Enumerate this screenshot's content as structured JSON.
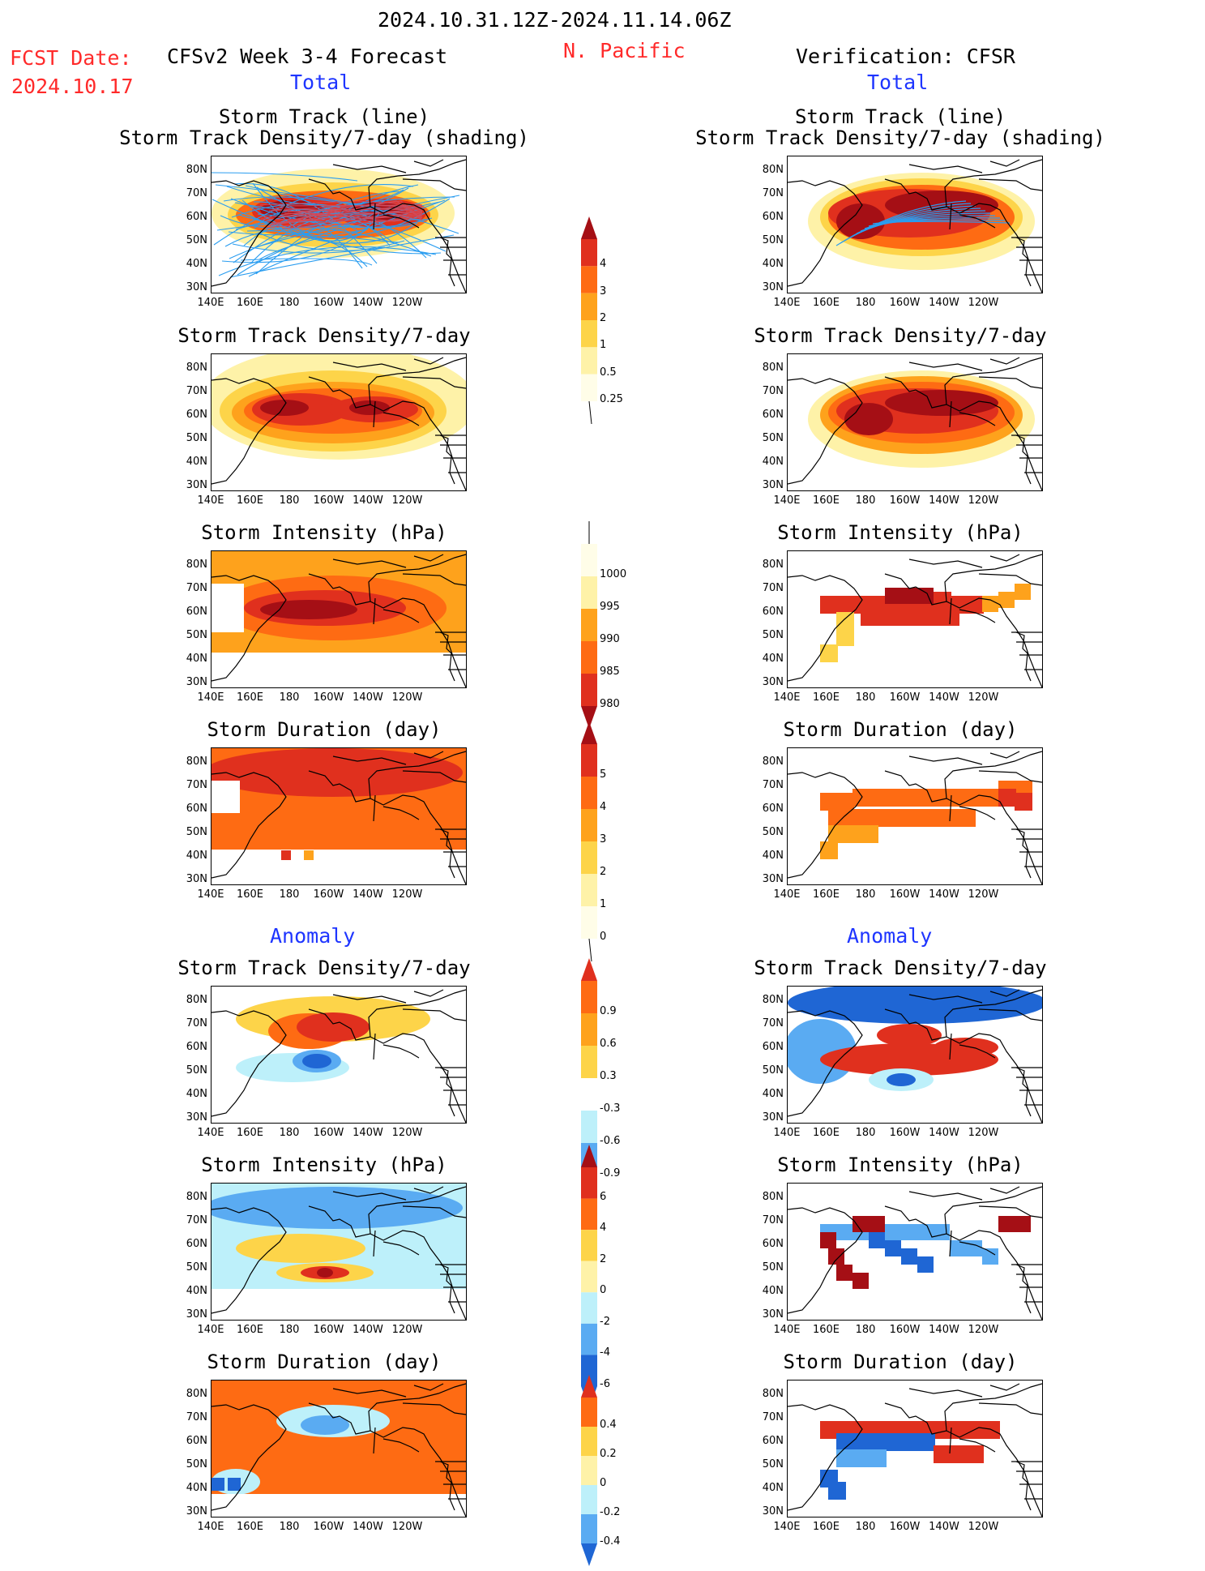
{
  "header": {
    "period": "2024.10.31.12Z-2024.11.14.06Z",
    "fcst_label": "FCST Date:",
    "fcst_date": "2024.10.17",
    "model": "CFSv2 Week 3-4 Forecast",
    "region": "N. Pacific",
    "verification": "Verification: CFSR",
    "total_left": "Total",
    "total_right": "Total",
    "anomaly_left": "Anomaly",
    "anomaly_right": "Anomaly"
  },
  "panels": {
    "track_line": "Storm Track (line)",
    "track_shading": "Storm Track Density/7-day (shading)",
    "density": "Storm Track Density/7-day",
    "intensity": "Storm Intensity (hPa)",
    "duration": "Storm Duration (day)"
  },
  "axes": {
    "y": [
      "80N",
      "70N",
      "60N",
      "50N",
      "40N",
      "30N"
    ],
    "x": [
      "140E",
      "160E",
      "180",
      "160W",
      "140W",
      "120W"
    ]
  },
  "colorbars": {
    "density": [
      "4",
      "3",
      "2",
      "1",
      "0.5",
      "0.25"
    ],
    "intensity": [
      "1000",
      "995",
      "990",
      "985",
      "980"
    ],
    "duration": [
      "5",
      "4",
      "3",
      "2",
      "1",
      "0"
    ],
    "density_anom": [
      "0.9",
      "0.6",
      "0.3",
      "-0.3",
      "-0.6",
      "-0.9"
    ],
    "intensity_anom": [
      "6",
      "4",
      "2",
      "0",
      "-2",
      "-4",
      "-6"
    ],
    "duration_anom": [
      "0.4",
      "0.2",
      "0",
      "-0.2",
      "-0.4"
    ]
  },
  "colors": {
    "darkred": "#a50f15",
    "red": "#e0301e",
    "orange": "#fe6b13",
    "lightorange": "#fea21c",
    "yellow": "#fdd449",
    "paleyellow": "#fef2a8",
    "lightblue": "#bdf0fa",
    "midblue": "#5aabf2",
    "blue": "#1f66d4",
    "track": "#2a9df0"
  }
}
